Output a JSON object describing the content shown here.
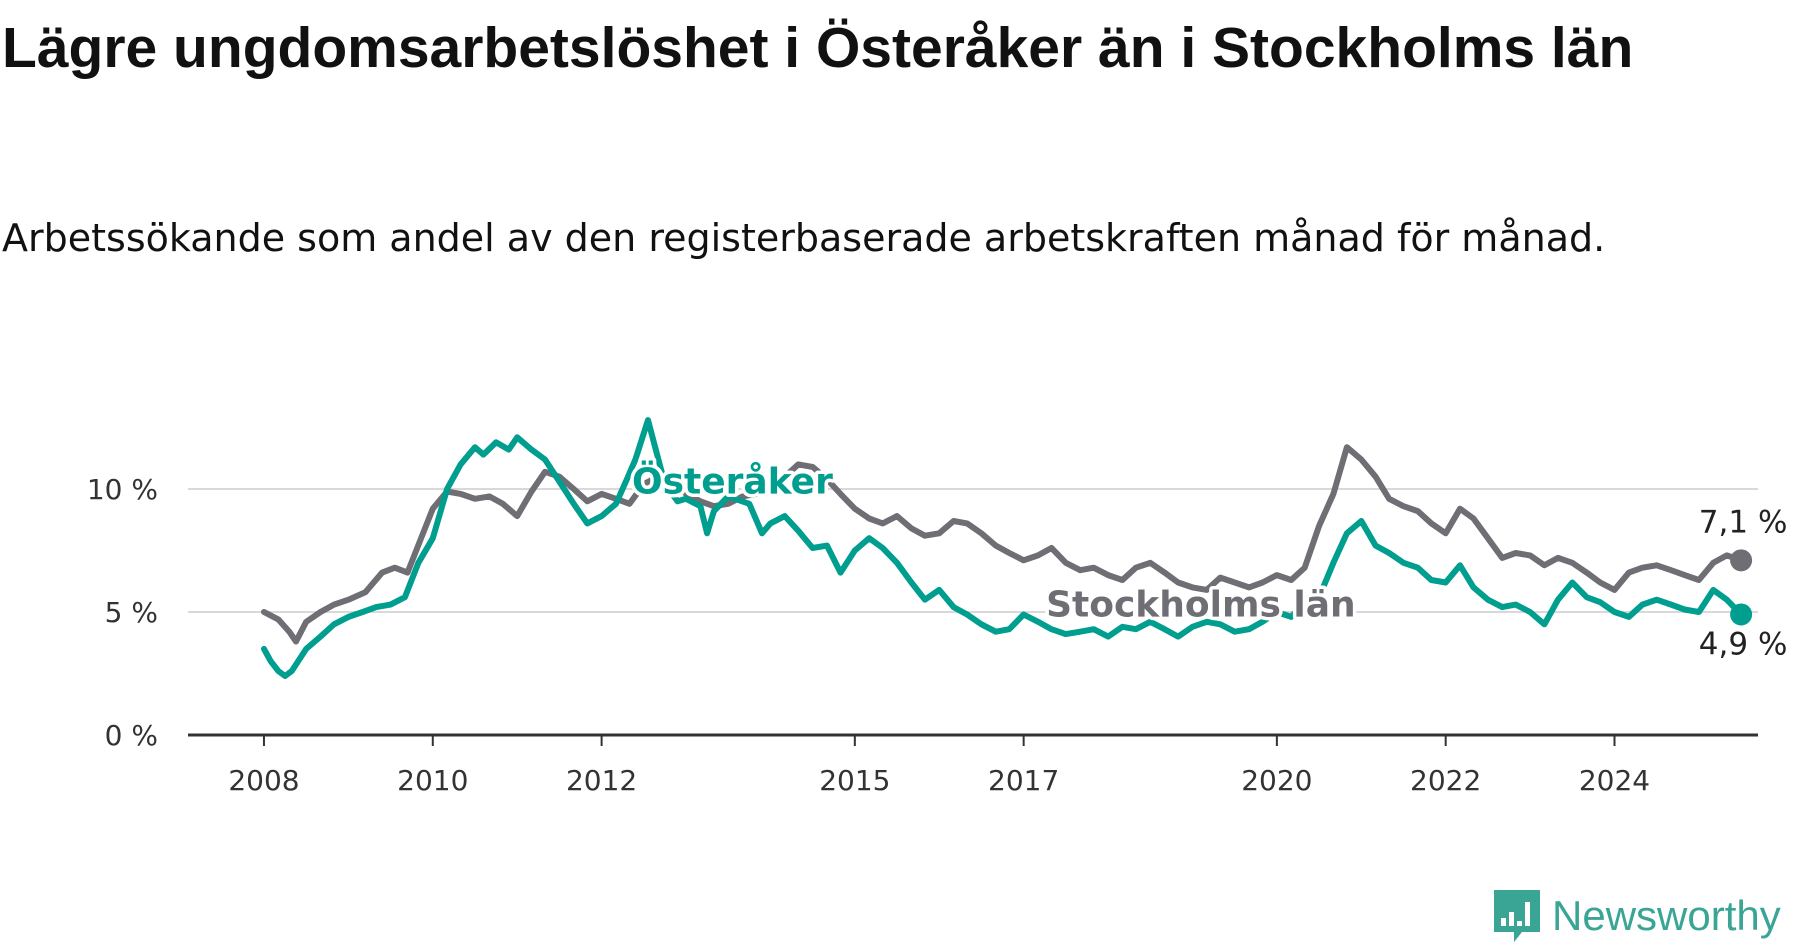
{
  "title": "Lägre ungdomsarbetslöshet i Österåker än i Stockholms län",
  "subtitle": "Arbetssökande som andel av den registerbaserade arbetskraften månad för månad.",
  "brand": {
    "name": "Newsworthy",
    "color": "#3aa594",
    "icon": "newsworthy-logo-icon"
  },
  "chart_data": {
    "type": "line",
    "y_ticks": [
      0,
      5,
      10
    ],
    "y_tick_labels": [
      "0 %",
      "5 %",
      "10 %"
    ],
    "ylim": [
      0,
      13.5
    ],
    "x_ticks": [
      2008,
      2010,
      2012,
      2015,
      2017,
      2020,
      2022,
      2024
    ],
    "x_tick_labels": [
      "2008",
      "2010",
      "2012",
      "2015",
      "2017",
      "2020",
      "2022",
      "2024"
    ],
    "xlim": [
      2007.1,
      2025.7
    ],
    "grid": true,
    "series": [
      {
        "name": "Stockholms län",
        "color": "#6f6e74",
        "end_label": "7,1 %",
        "points": [
          [
            2008.0,
            5.0
          ],
          [
            2008.17,
            4.7
          ],
          [
            2008.3,
            4.2
          ],
          [
            2008.38,
            3.8
          ],
          [
            2008.5,
            4.6
          ],
          [
            2008.67,
            5.0
          ],
          [
            2008.83,
            5.3
          ],
          [
            2009.0,
            5.5
          ],
          [
            2009.2,
            5.8
          ],
          [
            2009.4,
            6.6
          ],
          [
            2009.55,
            6.8
          ],
          [
            2009.7,
            6.6
          ],
          [
            2009.85,
            7.9
          ],
          [
            2010.0,
            9.2
          ],
          [
            2010.17,
            9.9
          ],
          [
            2010.33,
            9.8
          ],
          [
            2010.5,
            9.6
          ],
          [
            2010.67,
            9.7
          ],
          [
            2010.83,
            9.4
          ],
          [
            2011.0,
            8.9
          ],
          [
            2011.17,
            9.9
          ],
          [
            2011.33,
            10.7
          ],
          [
            2011.5,
            10.5
          ],
          [
            2011.67,
            10.0
          ],
          [
            2011.83,
            9.5
          ],
          [
            2012.0,
            9.8
          ],
          [
            2012.17,
            9.6
          ],
          [
            2012.33,
            9.4
          ],
          [
            2012.5,
            10.2
          ],
          [
            2012.67,
            10.5
          ],
          [
            2012.83,
            10.4
          ],
          [
            2013.0,
            9.8
          ],
          [
            2013.17,
            9.5
          ],
          [
            2013.33,
            9.3
          ],
          [
            2013.5,
            9.4
          ],
          [
            2013.67,
            9.7
          ],
          [
            2013.83,
            9.8
          ],
          [
            2014.0,
            10.0
          ],
          [
            2014.17,
            10.5
          ],
          [
            2014.33,
            11.0
          ],
          [
            2014.5,
            10.9
          ],
          [
            2014.67,
            10.4
          ],
          [
            2014.83,
            9.8
          ],
          [
            2015.0,
            9.2
          ],
          [
            2015.17,
            8.8
          ],
          [
            2015.33,
            8.6
          ],
          [
            2015.5,
            8.9
          ],
          [
            2015.67,
            8.4
          ],
          [
            2015.83,
            8.1
          ],
          [
            2016.0,
            8.2
          ],
          [
            2016.17,
            8.7
          ],
          [
            2016.33,
            8.6
          ],
          [
            2016.5,
            8.2
          ],
          [
            2016.67,
            7.7
          ],
          [
            2016.83,
            7.4
          ],
          [
            2017.0,
            7.1
          ],
          [
            2017.17,
            7.3
          ],
          [
            2017.33,
            7.6
          ],
          [
            2017.5,
            7.0
          ],
          [
            2017.67,
            6.7
          ],
          [
            2017.83,
            6.8
          ],
          [
            2018.0,
            6.5
          ],
          [
            2018.17,
            6.3
          ],
          [
            2018.33,
            6.8
          ],
          [
            2018.5,
            7.0
          ],
          [
            2018.67,
            6.6
          ],
          [
            2018.83,
            6.2
          ],
          [
            2019.0,
            6.0
          ],
          [
            2019.17,
            5.9
          ],
          [
            2019.33,
            6.4
          ],
          [
            2019.5,
            6.2
          ],
          [
            2019.67,
            6.0
          ],
          [
            2019.83,
            6.2
          ],
          [
            2020.0,
            6.5
          ],
          [
            2020.17,
            6.3
          ],
          [
            2020.33,
            6.8
          ],
          [
            2020.5,
            8.5
          ],
          [
            2020.67,
            9.8
          ],
          [
            2020.83,
            11.7
          ],
          [
            2021.0,
            11.2
          ],
          [
            2021.17,
            10.5
          ],
          [
            2021.33,
            9.6
          ],
          [
            2021.5,
            9.3
          ],
          [
            2021.67,
            9.1
          ],
          [
            2021.83,
            8.6
          ],
          [
            2022.0,
            8.2
          ],
          [
            2022.17,
            9.2
          ],
          [
            2022.33,
            8.8
          ],
          [
            2022.5,
            8.0
          ],
          [
            2022.67,
            7.2
          ],
          [
            2022.83,
            7.4
          ],
          [
            2023.0,
            7.3
          ],
          [
            2023.17,
            6.9
          ],
          [
            2023.33,
            7.2
          ],
          [
            2023.5,
            7.0
          ],
          [
            2023.67,
            6.6
          ],
          [
            2023.83,
            6.2
          ],
          [
            2024.0,
            5.9
          ],
          [
            2024.17,
            6.6
          ],
          [
            2024.33,
            6.8
          ],
          [
            2024.5,
            6.9
          ],
          [
            2024.67,
            6.7
          ],
          [
            2024.83,
            6.5
          ],
          [
            2025.0,
            6.3
          ],
          [
            2025.17,
            7.0
          ],
          [
            2025.33,
            7.3
          ],
          [
            2025.5,
            7.1
          ]
        ]
      },
      {
        "name": "Österåker",
        "color": "#009e8e",
        "end_label": "4,9 %",
        "points": [
          [
            2008.0,
            3.5
          ],
          [
            2008.08,
            3.0
          ],
          [
            2008.17,
            2.6
          ],
          [
            2008.25,
            2.4
          ],
          [
            2008.33,
            2.6
          ],
          [
            2008.5,
            3.5
          ],
          [
            2008.67,
            4.0
          ],
          [
            2008.83,
            4.5
          ],
          [
            2009.0,
            4.8
          ],
          [
            2009.17,
            5.0
          ],
          [
            2009.33,
            5.2
          ],
          [
            2009.5,
            5.3
          ],
          [
            2009.67,
            5.6
          ],
          [
            2009.83,
            7.0
          ],
          [
            2010.0,
            8.0
          ],
          [
            2010.17,
            10.0
          ],
          [
            2010.33,
            11.0
          ],
          [
            2010.5,
            11.7
          ],
          [
            2010.6,
            11.4
          ],
          [
            2010.75,
            11.9
          ],
          [
            2010.9,
            11.6
          ],
          [
            2011.0,
            12.1
          ],
          [
            2011.17,
            11.6
          ],
          [
            2011.33,
            11.2
          ],
          [
            2011.5,
            10.3
          ],
          [
            2011.67,
            9.4
          ],
          [
            2011.83,
            8.6
          ],
          [
            2012.0,
            8.9
          ],
          [
            2012.17,
            9.4
          ],
          [
            2012.3,
            10.4
          ],
          [
            2012.4,
            11.2
          ],
          [
            2012.55,
            12.8
          ],
          [
            2012.75,
            10.2
          ],
          [
            2012.9,
            9.5
          ],
          [
            2013.0,
            9.6
          ],
          [
            2013.17,
            9.3
          ],
          [
            2013.25,
            8.2
          ],
          [
            2013.33,
            9.1
          ],
          [
            2013.5,
            9.7
          ],
          [
            2013.75,
            9.4
          ],
          [
            2013.9,
            8.2
          ],
          [
            2014.0,
            8.6
          ],
          [
            2014.17,
            8.9
          ],
          [
            2014.33,
            8.3
          ],
          [
            2014.5,
            7.6
          ],
          [
            2014.67,
            7.7
          ],
          [
            2014.83,
            6.6
          ],
          [
            2015.0,
            7.5
          ],
          [
            2015.17,
            8.0
          ],
          [
            2015.33,
            7.6
          ],
          [
            2015.5,
            7.0
          ],
          [
            2015.67,
            6.2
          ],
          [
            2015.83,
            5.5
          ],
          [
            2016.0,
            5.9
          ],
          [
            2016.17,
            5.2
          ],
          [
            2016.33,
            4.9
          ],
          [
            2016.5,
            4.5
          ],
          [
            2016.67,
            4.2
          ],
          [
            2016.83,
            4.3
          ],
          [
            2017.0,
            4.9
          ],
          [
            2017.17,
            4.6
          ],
          [
            2017.33,
            4.3
          ],
          [
            2017.5,
            4.1
          ],
          [
            2017.67,
            4.2
          ],
          [
            2017.83,
            4.3
          ],
          [
            2018.0,
            4.0
          ],
          [
            2018.17,
            4.4
          ],
          [
            2018.33,
            4.3
          ],
          [
            2018.5,
            4.6
          ],
          [
            2018.67,
            4.3
          ],
          [
            2018.83,
            4.0
          ],
          [
            2019.0,
            4.4
          ],
          [
            2019.17,
            4.6
          ],
          [
            2019.33,
            4.5
          ],
          [
            2019.5,
            4.2
          ],
          [
            2019.67,
            4.3
          ],
          [
            2019.83,
            4.6
          ],
          [
            2020.0,
            5.0
          ],
          [
            2020.17,
            4.8
          ],
          [
            2020.33,
            5.4
          ],
          [
            2020.5,
            5.6
          ],
          [
            2020.67,
            7.0
          ],
          [
            2020.83,
            8.2
          ],
          [
            2021.0,
            8.7
          ],
          [
            2021.17,
            7.7
          ],
          [
            2021.33,
            7.4
          ],
          [
            2021.5,
            7.0
          ],
          [
            2021.67,
            6.8
          ],
          [
            2021.83,
            6.3
          ],
          [
            2022.0,
            6.2
          ],
          [
            2022.17,
            6.9
          ],
          [
            2022.33,
            6.0
          ],
          [
            2022.5,
            5.5
          ],
          [
            2022.67,
            5.2
          ],
          [
            2022.83,
            5.3
          ],
          [
            2023.0,
            5.0
          ],
          [
            2023.17,
            4.5
          ],
          [
            2023.33,
            5.5
          ],
          [
            2023.5,
            6.2
          ],
          [
            2023.67,
            5.6
          ],
          [
            2023.83,
            5.4
          ],
          [
            2024.0,
            5.0
          ],
          [
            2024.17,
            4.8
          ],
          [
            2024.33,
            5.3
          ],
          [
            2024.5,
            5.5
          ],
          [
            2024.67,
            5.3
          ],
          [
            2024.83,
            5.1
          ],
          [
            2025.0,
            5.0
          ],
          [
            2025.17,
            5.9
          ],
          [
            2025.33,
            5.5
          ],
          [
            2025.5,
            4.9
          ]
        ]
      }
    ],
    "labels": [
      {
        "series": "Österåker",
        "text": "Österåker",
        "x": 2013.55,
        "y": 10.3
      },
      {
        "series": "Stockholms län",
        "text": "Stockholms län",
        "x": 2019.1,
        "y": 5.3
      }
    ]
  }
}
